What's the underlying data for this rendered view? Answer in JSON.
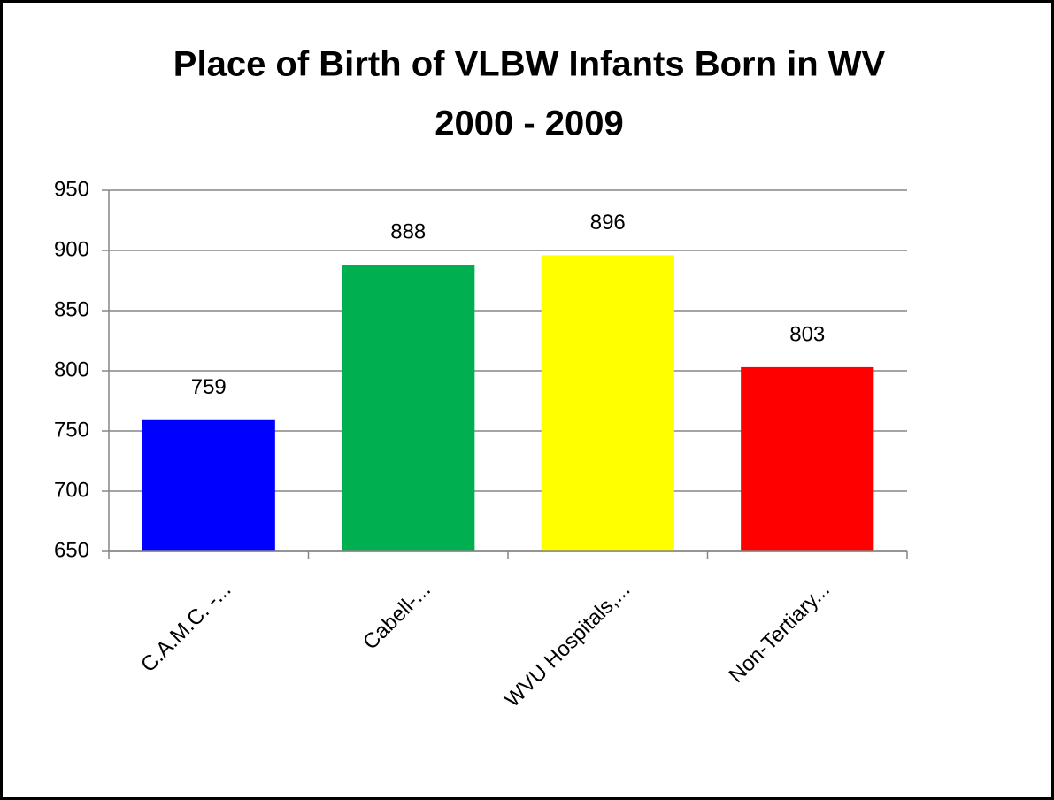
{
  "chart_data": {
    "type": "bar",
    "title": [
      "Place of Birth of VLBW Infants Born in WV",
      "2000 - 2009"
    ],
    "categories": [
      "C.A.M.C. -...",
      "Cabell-...",
      "WVU Hospitals,...",
      "Non-Tertiary..."
    ],
    "values": [
      759,
      888,
      896,
      803
    ],
    "colors": [
      "#0000ff",
      "#00b050",
      "#ffff00",
      "#ff0000"
    ],
    "ylim": [
      650,
      950
    ],
    "yticks": [
      650,
      700,
      750,
      800,
      850,
      900,
      950
    ],
    "grid": true
  }
}
